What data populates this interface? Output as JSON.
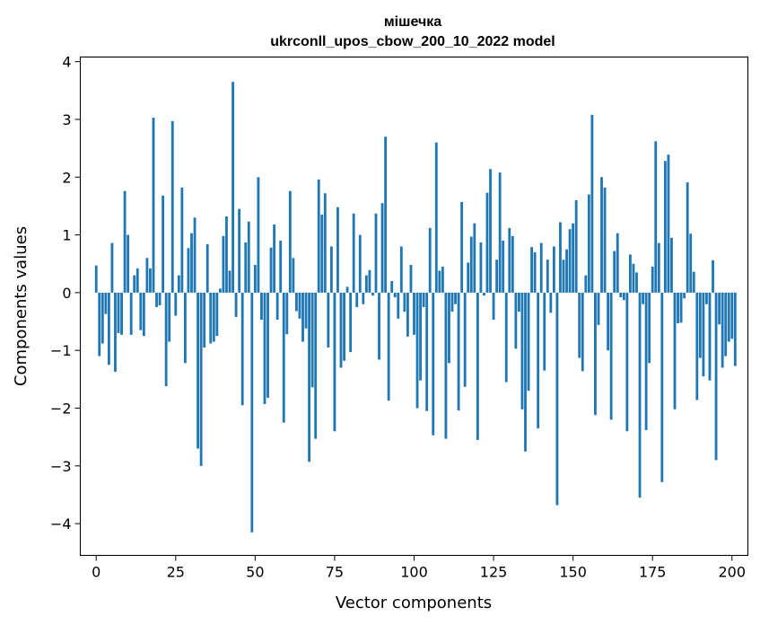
{
  "chart_data": {
    "type": "bar",
    "title": [
      "мішечка",
      "ukrconll_upos_cbow_200_10_2022 model"
    ],
    "xlabel": "Vector components",
    "ylabel": "Components values",
    "xlim": [
      -5,
      205
    ],
    "ylim": [
      -4.55,
      4.08
    ],
    "xticks": [
      0,
      25,
      50,
      75,
      100,
      125,
      150,
      175,
      200
    ],
    "yticks": [
      -4,
      -3,
      -2,
      -1,
      0,
      1,
      2,
      3,
      4
    ],
    "grid": false,
    "color": "#1f77b4",
    "values": [
      0.47,
      -1.1,
      -0.88,
      -0.37,
      -1.25,
      0.86,
      -1.37,
      -0.7,
      -0.73,
      1.76,
      1.0,
      -0.73,
      0.3,
      0.42,
      -0.65,
      -0.75,
      0.6,
      0.42,
      3.03,
      -0.25,
      -0.22,
      1.68,
      -1.62,
      -0.85,
      2.97,
      -0.4,
      0.3,
      1.82,
      -1.22,
      0.77,
      1.03,
      1.3,
      -2.7,
      -3.0,
      -0.95,
      0.84,
      -0.88,
      -0.85,
      -0.75,
      0.07,
      0.98,
      1.32,
      0.38,
      3.65,
      -0.42,
      1.45,
      -1.95,
      0.87,
      1.23,
      -4.15,
      0.48,
      2.0,
      -0.47,
      -1.93,
      -1.82,
      0.78,
      1.18,
      -0.47,
      0.9,
      -2.25,
      -0.72,
      1.76,
      0.6,
      -0.32,
      -0.45,
      -0.85,
      -0.62,
      -2.93,
      -1.64,
      -2.53,
      1.96,
      1.35,
      1.72,
      -0.95,
      0.8,
      -2.4,
      1.48,
      -1.3,
      -1.18,
      0.1,
      -1.03,
      1.37,
      -0.25,
      1.0,
      -0.2,
      0.3,
      0.39,
      -0.05,
      1.37,
      -1.16,
      1.55,
      2.7,
      -1.87,
      0.2,
      -0.08,
      -0.45,
      0.8,
      -0.33,
      -0.76,
      0.48,
      -0.73,
      -2.0,
      -1.52,
      -0.25,
      -2.05,
      1.12,
      -2.47,
      2.6,
      0.38,
      0.45,
      -2.53,
      -1.22,
      -0.33,
      -0.2,
      -2.04,
      1.57,
      -1.63,
      0.52,
      0.97,
      1.2,
      -2.55,
      0.87,
      -0.05,
      1.73,
      2.14,
      -0.47,
      0.57,
      2.08,
      0.9,
      -1.55,
      1.12,
      0.98,
      -0.97,
      -0.33,
      -2.02,
      -2.75,
      -1.7,
      0.79,
      0.7,
      -2.35,
      0.86,
      -1.35,
      0.57,
      -0.35,
      0.8,
      -3.68,
      1.22,
      0.57,
      0.75,
      1.1,
      1.2,
      1.6,
      -1.13,
      -1.36,
      0.3,
      1.7,
      3.08,
      -2.12,
      -0.56,
      2.0,
      1.82,
      -1.0,
      -2.2,
      0.72,
      1.03,
      -0.08,
      -0.13,
      -2.4,
      0.66,
      0.5,
      0.35,
      -3.55,
      -0.2,
      -2.38,
      -1.22,
      0.45,
      2.62,
      0.86,
      -3.28,
      2.28,
      2.39,
      0.95,
      -2.02,
      -0.53,
      -0.52,
      -0.1,
      1.91,
      1.02,
      0.36,
      -1.86,
      -1.13,
      -1.45,
      -0.2,
      -1.52,
      0.56,
      -2.9,
      -0.55,
      -1.3,
      -1.1,
      -0.85,
      -0.8,
      -1.27
    ]
  }
}
